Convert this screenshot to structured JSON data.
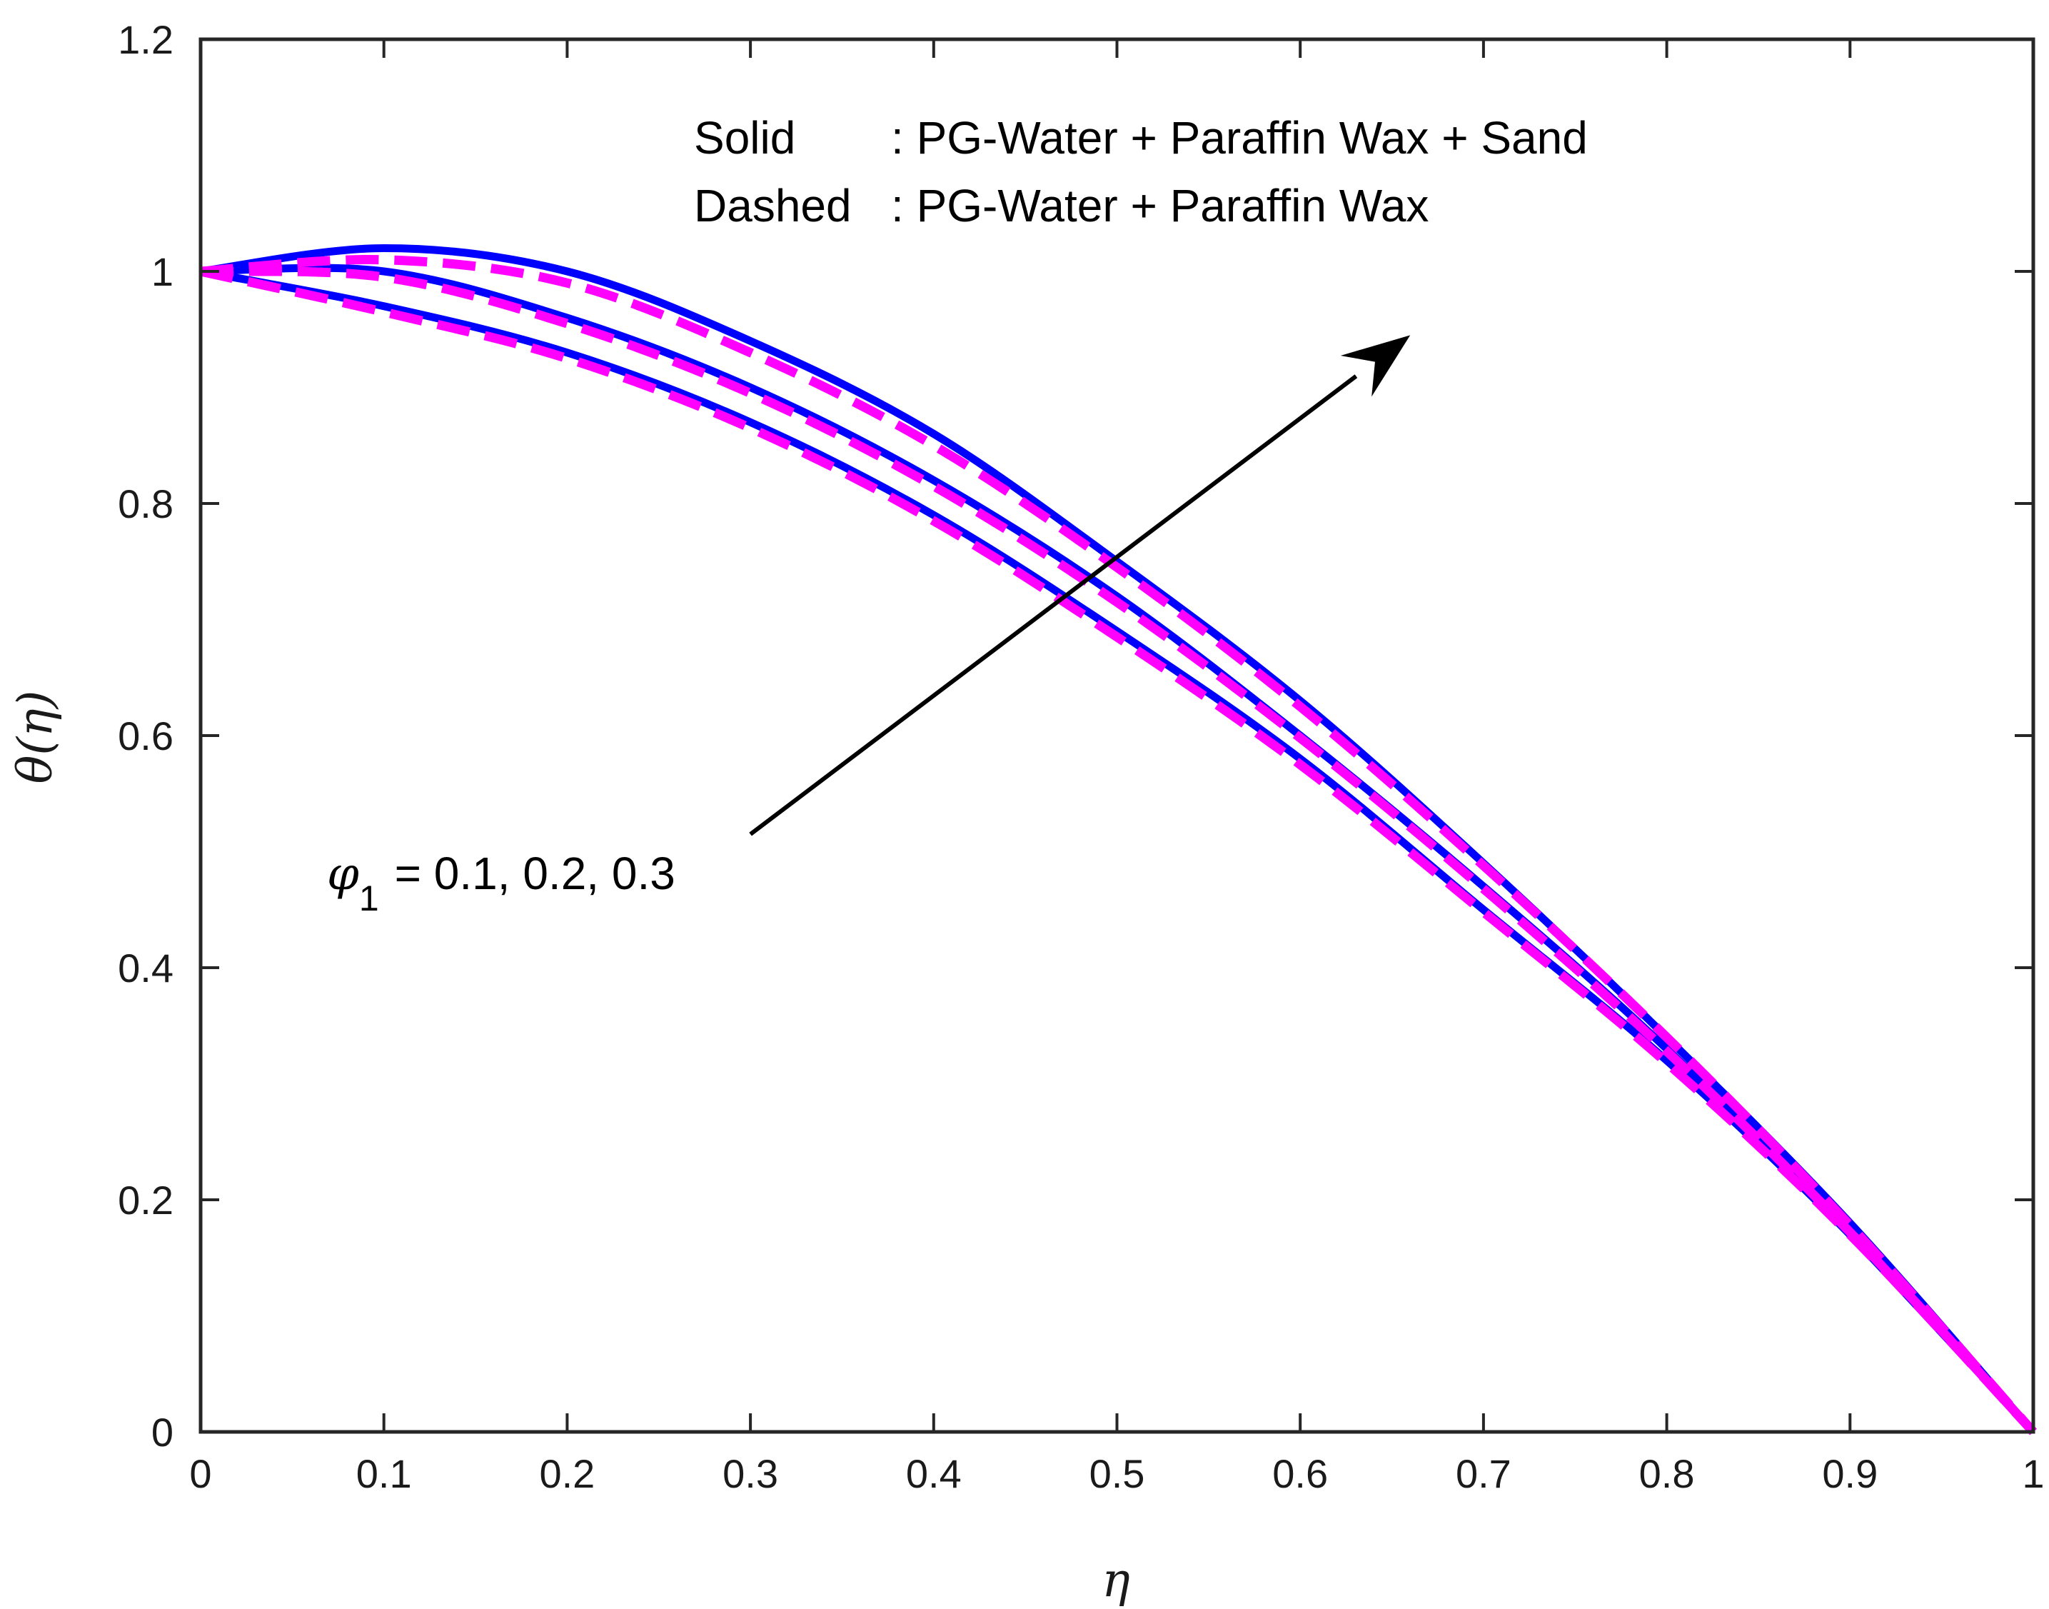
{
  "chart_data": {
    "type": "line",
    "title": "",
    "xlabel": "η",
    "ylabel": "θ(η)",
    "xlim": [
      0,
      1
    ],
    "ylim": [
      0,
      1.2
    ],
    "xticks": [
      0,
      0.1,
      0.2,
      0.3,
      0.4,
      0.5,
      0.6,
      0.7,
      0.8,
      0.9,
      1
    ],
    "xtick_labels": [
      "0",
      "0.1",
      "0.2",
      "0.3",
      "0.4",
      "0.5",
      "0.6",
      "0.7",
      "0.8",
      "0.9",
      "1"
    ],
    "yticks": [
      0,
      0.2,
      0.4,
      0.6,
      0.8,
      1,
      1.2
    ],
    "ytick_labels": [
      "0",
      "0.2",
      "0.4",
      "0.6",
      "0.8",
      "1",
      "1.2"
    ],
    "grid": false,
    "x": [
      0,
      0.1,
      0.2,
      0.3,
      0.4,
      0.5,
      0.6,
      0.7,
      0.8,
      0.9,
      1
    ],
    "series": [
      {
        "name": "Solid, φ1 = 0.1 (PG-Water + Paraffin Wax + Sand)",
        "style": "solid",
        "color": "#0000ff",
        "values": [
          1,
          0.97,
          0.93,
          0.87,
          0.79,
          0.69,
          0.58,
          0.45,
          0.32,
          0.17,
          0
        ]
      },
      {
        "name": "Solid, φ1 = 0.2 (PG-Water + Paraffin Wax + Sand)",
        "style": "solid",
        "color": "#0000ff",
        "values": [
          1,
          1.0,
          0.96,
          0.9,
          0.82,
          0.72,
          0.6,
          0.47,
          0.33,
          0.17,
          0
        ]
      },
      {
        "name": "Solid, φ1 = 0.3 (PG-Water + Paraffin Wax + Sand)",
        "style": "solid",
        "color": "#0000ff",
        "values": [
          1,
          1.02,
          1.0,
          0.94,
          0.86,
          0.75,
          0.63,
          0.49,
          0.34,
          0.18,
          0
        ]
      },
      {
        "name": "Dashed, φ1 = 0.1 (PG-Water + Paraffin Wax)",
        "style": "dashed",
        "color": "#ff00ff",
        "values": [
          1,
          0.965,
          0.925,
          0.865,
          0.785,
          0.685,
          0.575,
          0.448,
          0.318,
          0.17,
          0
        ]
      },
      {
        "name": "Dashed, φ1 = 0.2 (PG-Water + Paraffin Wax)",
        "style": "dashed",
        "color": "#ff00ff",
        "values": [
          1,
          0.995,
          0.955,
          0.895,
          0.815,
          0.715,
          0.598,
          0.468,
          0.328,
          0.172,
          0
        ]
      },
      {
        "name": "Dashed, φ1 = 0.3 (PG-Water + Paraffin Wax)",
        "style": "dashed",
        "color": "#ff00ff",
        "values": [
          1,
          1.01,
          0.99,
          0.93,
          0.85,
          0.745,
          0.625,
          0.488,
          0.34,
          0.178,
          0
        ]
      }
    ],
    "annotations": {
      "legend_solid_key": "Solid",
      "legend_solid_desc": ": PG-Water + Paraffin Wax + Sand",
      "legend_dashed_key": "Dashed",
      "legend_dashed_desc": ": PG-Water + Paraffin Wax",
      "phi_symbol": "φ",
      "phi_subscript": "1",
      "phi_values": "= 0.1, 0.2, 0.3",
      "arrow": {
        "from": [
          0.3,
          0.515
        ],
        "to": [
          0.66,
          0.945
        ]
      }
    }
  }
}
